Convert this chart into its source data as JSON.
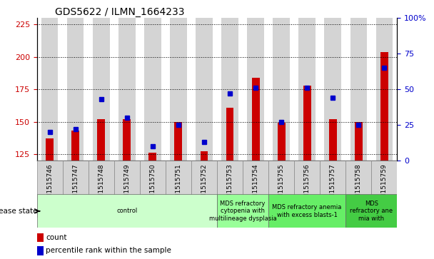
{
  "title": "GDS5622 / ILMN_1664233",
  "samples": [
    "GSM1515746",
    "GSM1515747",
    "GSM1515748",
    "GSM1515749",
    "GSM1515750",
    "GSM1515751",
    "GSM1515752",
    "GSM1515753",
    "GSM1515754",
    "GSM1515755",
    "GSM1515756",
    "GSM1515757",
    "GSM1515758",
    "GSM1515759"
  ],
  "count_values": [
    137,
    143,
    152,
    152,
    126,
    150,
    127,
    161,
    184,
    149,
    178,
    152,
    150,
    204
  ],
  "percentile_values": [
    20,
    22,
    43,
    30,
    10,
    25,
    13,
    47,
    51,
    27,
    51,
    44,
    25,
    65
  ],
  "ylim_left": [
    120,
    230
  ],
  "ylim_right": [
    0,
    100
  ],
  "yticks_left": [
    125,
    150,
    175,
    200,
    225
  ],
  "yticks_right": [
    0,
    25,
    50,
    75,
    100
  ],
  "bar_color": "#cc0000",
  "dot_color": "#0000cc",
  "bar_bottom": 120,
  "disease_groups": [
    {
      "label": "control",
      "start": 0,
      "end": 7,
      "color": "#ccffcc"
    },
    {
      "label": "MDS refractory\ncytopenia with\nmultilineage dysplasia",
      "start": 7,
      "end": 9,
      "color": "#99ff99"
    },
    {
      "label": "MDS refractory anemia\nwith excess blasts-1",
      "start": 9,
      "end": 12,
      "color": "#66ee66"
    },
    {
      "label": "MDS\nrefractory ane\nmia with",
      "start": 12,
      "end": 14,
      "color": "#44cc44"
    }
  ],
  "xlabel_disease": "disease state",
  "legend_count": "count",
  "legend_percentile": "percentile rank within the sample",
  "bg_color_bars": "#d4d4d4",
  "title_fontsize": 10,
  "axis_left_color": "#cc0000",
  "axis_right_color": "#0000cc",
  "plot_bg": "#ffffff",
  "bar_width": 0.55,
  "dot_size": 5
}
